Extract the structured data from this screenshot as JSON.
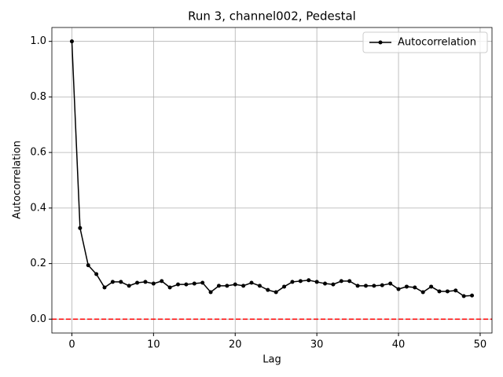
{
  "chart_data": {
    "type": "line",
    "title": "Run 3, channel002, Pedestal",
    "xlabel": "Lag",
    "ylabel": "Autocorrelation",
    "x": [
      0,
      1,
      2,
      3,
      4,
      5,
      6,
      7,
      8,
      9,
      10,
      11,
      12,
      13,
      14,
      15,
      16,
      17,
      18,
      19,
      20,
      21,
      22,
      23,
      24,
      25,
      26,
      27,
      28,
      29,
      30,
      31,
      32,
      33,
      34,
      35,
      36,
      37,
      38,
      39,
      40,
      41,
      42,
      43,
      44,
      45,
      46,
      47,
      48,
      49
    ],
    "series": [
      {
        "name": "Autocorrelation",
        "color": "#000000",
        "values": [
          1.0,
          0.328,
          0.194,
          0.162,
          0.114,
          0.134,
          0.134,
          0.12,
          0.131,
          0.134,
          0.128,
          0.137,
          0.114,
          0.125,
          0.125,
          0.128,
          0.131,
          0.097,
          0.12,
          0.12,
          0.125,
          0.12,
          0.131,
          0.12,
          0.105,
          0.097,
          0.117,
          0.134,
          0.137,
          0.14,
          0.134,
          0.128,
          0.125,
          0.137,
          0.137,
          0.12,
          0.12,
          0.12,
          0.122,
          0.128,
          0.108,
          0.117,
          0.114,
          0.097,
          0.117,
          0.1,
          0.1,
          0.103,
          0.083,
          0.085
        ]
      }
    ],
    "hline": {
      "value": 0,
      "color": "#ff0000"
    },
    "xlim": [
      -2.45,
      51.45
    ],
    "ylim": [
      -0.05,
      1.05
    ],
    "xticks": [
      0,
      10,
      20,
      30,
      40,
      50
    ],
    "yticks": [
      {
        "value": 0,
        "label": "0.0"
      },
      {
        "value": 0.2,
        "label": "0.2"
      },
      {
        "value": 0.4,
        "label": "0.4"
      },
      {
        "value": 0.6,
        "label": "0.6"
      },
      {
        "value": 0.8,
        "label": "0.8"
      },
      {
        "value": 1.0,
        "label": "1.0"
      }
    ],
    "grid": true,
    "legend": "upper right"
  }
}
